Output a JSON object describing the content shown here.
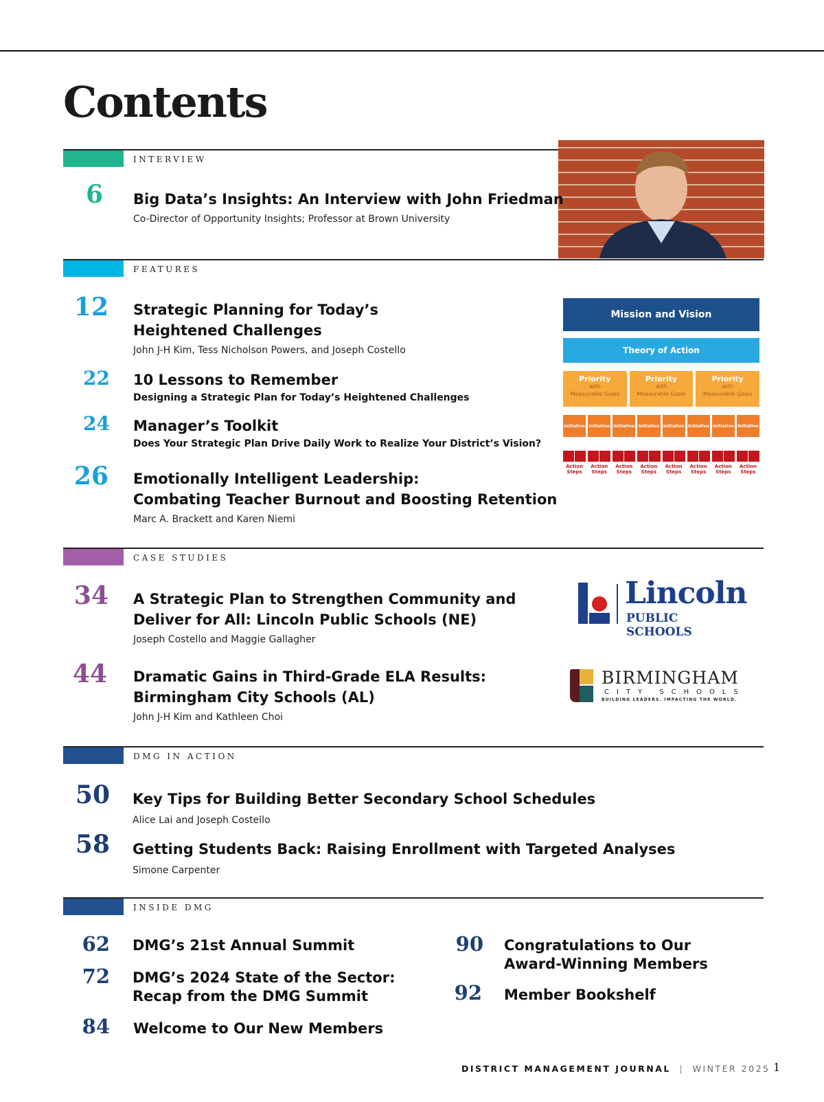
{
  "title": "Contents",
  "colors": {
    "interview": "#1fb58f",
    "features": "#00b5e6",
    "case_studies": "#a45ea8",
    "dmg": "#23508f"
  },
  "interview": {
    "label": "INTERVIEW",
    "items": [
      {
        "page": "6",
        "title": "Big Data’s Insights: An Interview with John Friedman",
        "subtitle": "Co-Director of Opportunity Insights; Professor at Brown University"
      }
    ]
  },
  "features": {
    "label": "FEATURES",
    "items": [
      {
        "page": "12",
        "title1": "Strategic Planning for Today’s",
        "title2": "Heightened Challenges",
        "subtitle": "John J-H Kim, Tess Nicholson Powers, and Joseph Costello"
      },
      {
        "page": "22",
        "title1": "10 Lessons to Remember",
        "subtitle": "Designing a Strategic Plan for Today’s Heightened Challenges"
      },
      {
        "page": "24",
        "title1": "Manager’s Toolkit",
        "subtitle": "Does Your Strategic Plan Drive Daily Work to Realize Your District’s Vision?"
      },
      {
        "page": "26",
        "title1": "Emotionally Intelligent Leadership:",
        "title2": "Combating Teacher Burnout and Boosting Retention",
        "subtitle": "Marc A. Brackett and Karen Niemi"
      }
    ]
  },
  "diagram": {
    "mission": "Mission and Vision",
    "theory": "Theory of Action",
    "priority": "Priority",
    "with": "with",
    "goals": "Measurable Goals",
    "initiative": "Initiative",
    "action1": "Action",
    "action2": "Steps"
  },
  "case_studies": {
    "label": "CASE STUDIES",
    "items": [
      {
        "page": "34",
        "title1": "A Strategic Plan to Strengthen Community and",
        "title2": "Deliver for All: Lincoln Public Schools (NE)",
        "subtitle": "Joseph Costello and Maggie Gallagher"
      },
      {
        "page": "44",
        "title1": "Dramatic Gains in Third-Grade ELA Results:",
        "title2": "Birmingham City Schools (AL)",
        "subtitle": "John J-H Kim and Kathleen Choi"
      }
    ]
  },
  "logos": {
    "lincoln": "Lincoln",
    "lincoln_sub": "PUBLIC SCHOOLS",
    "birmingham": "BIRMINGHAM",
    "birmingham_sub": "CITY SCHOOLS",
    "birmingham_tag": "BUILDING LEADERS. IMPACTING THE WORLD."
  },
  "dmg_in_action": {
    "label": "DMG IN ACTION",
    "items": [
      {
        "page": "50",
        "title": "Key Tips for Building Better Secondary School Schedules",
        "subtitle": "Alice Lai and Joseph Costello"
      },
      {
        "page": "58",
        "title": "Getting Students Back: Raising Enrollment with Targeted Analyses",
        "subtitle": "Simone Carpenter"
      }
    ]
  },
  "inside_dmg": {
    "label": "INSIDE DMG",
    "items": [
      {
        "page": "62",
        "title1": "DMG’s 21st Annual Summit"
      },
      {
        "page": "72",
        "title1": "DMG’s 2024 State of the Sector:",
        "title2": "Recap from the DMG Summit"
      },
      {
        "page": "84",
        "title1": "Welcome to Our New Members"
      },
      {
        "page": "90",
        "title1": "Congratulations to Our",
        "title2": "Award-Winning Members"
      },
      {
        "page": "92",
        "title1": "Member Bookshelf"
      }
    ]
  },
  "footer": {
    "journal": "DISTRICT MANAGEMENT JOURNAL",
    "separator": "|",
    "issue": "WINTER 2025",
    "page": "1"
  }
}
